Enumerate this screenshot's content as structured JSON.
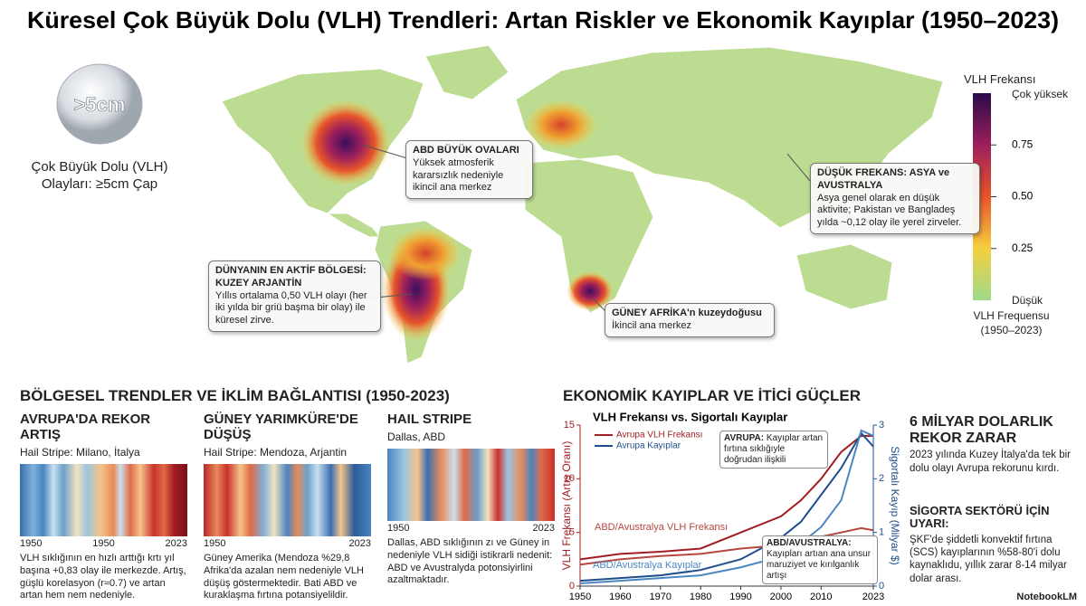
{
  "title": "Küresel Çok Büyük Dolu (VLH) Trendleri: Artan Riskler ve Ekonomik Kayıplar (1950–2023)",
  "hail_icon": {
    "label": ">5cm",
    "caption": "Çok Büyük Dolu (VLH) Olayları: ≥5cm Çap"
  },
  "map": {
    "colorbar": {
      "title": "VLH Frekansı",
      "top_label": "Çok yüksek",
      "lim": [
        0,
        1
      ],
      "ticks": [
        0.75,
        {
          "value": 0.5,
          "label": "0.50"
        },
        0.25
      ],
      "bottom_label": "Düşük",
      "caption": "VLH Frequensu (1950–2023)"
    },
    "callouts": [
      {
        "title": "ABD BÜYÜK OVALARI",
        "text": "Yüksek atmosferik kararsızlık nedeniyle ikincil ana merkez"
      },
      {
        "title": "DÜŞÜK FREKANS: ASYA ve AVUSTRALYA",
        "text": "Asya genel olarak en düşük aktivite; Pakistan ve Bangladeş yılda ~0,12 olay ile yerel zirveler."
      },
      {
        "title": "DÜNYANIN EN AKTİF BÖLGESİ: KUZEY ARJANTİN",
        "text": "Yıllıs ortalama 0,50 VLH olayı (her iki yılda bir griü başma bir olay) ile küresel zirve."
      },
      {
        "title": "GÜNEY AFRİKA'n kuzeydoğusu",
        "text": "İkincil ana merkez"
      }
    ]
  },
  "regional": {
    "title": "BÖLGESEL TRENDLER VE İKLİM BAĞLANTISI (1950-2023)",
    "panels": [
      {
        "title": "AVRUPA'DA REKOR ARTIŞ",
        "subtitle": "Hail Stripe: Milano, İtalya",
        "axis_labels": [
          "1950",
          "1950",
          "2023"
        ],
        "text": "VLH sıklığının en hızlı arttığı krtı yıl başına +0,83 olay ile merkezde. Artış, güşlü korelasyon (r≈0.7) ve artan artan hem nem nedeniyle."
      },
      {
        "title": "GÜNEY YARIMKÜRE'DE DÜŞÜŞ",
        "subtitle": "Hail Stripe: Mendoza, Arjantin",
        "axis_labels": [
          "1950",
          "2023"
        ],
        "text": "Güney Amerika (Mendoza %29,8 Afrika'da azalan nem nedeniyle VLH düşüş göstermektedir. Bati ABD ve kuraklaşma fırtına potansiyelildir."
      },
      {
        "title": "HAIL STRIPE",
        "subtitle": "Dallas, ABD",
        "axis_labels": [
          "1950",
          "2023"
        ],
        "text": "Dallas, ABD sıklığının zı ve Güney in nedeniyle VLH sidiği istikrarli nedenit: ABD ve Avustralyda potonsiyirlini azaltmaktadır."
      }
    ]
  },
  "economic": {
    "title": "EKONOMİK KAYIPLAR VE İTİCİ GÜÇLER",
    "stats": [
      {
        "title": "6 MİLYAR DOLARLIK REKOR ZARAR",
        "text": "2023 yılında Kuzey İtalya'da tek bir dolu olayı Avrupa rekorunu kırdı."
      },
      {
        "title": "SİGORTA SEKTÖRÜ İÇİN UYARI:",
        "text": "ŞKF'de şiddetli konvektif fırtına (SCS) kayıplarının %58-80'i dolu kaynaklıdu, yıllık zarar 8-14 milyar dolar arası."
      }
    ]
  },
  "chart_data": {
    "type": "line",
    "title": "VLH Frekansı vs. Sigortalı Kayıplar",
    "x": [
      1950,
      1960,
      1970,
      1980,
      1990,
      2000,
      2005,
      2010,
      2015,
      2020,
      2023
    ],
    "xlim": [
      1950,
      2023
    ],
    "xticks": [
      1950,
      1960,
      1970,
      1980,
      1990,
      2000,
      2010,
      2023
    ],
    "ylabel": "VLH Frekansı (Artış Oranı)",
    "ylim": [
      0,
      15
    ],
    "yticks": [
      0,
      5,
      10,
      15
    ],
    "y2label": "Sigortalı Kayıp (Milyar $)",
    "y2lim": [
      0,
      3
    ],
    "y2ticks": [
      0,
      1,
      2,
      3
    ],
    "series": [
      {
        "name": "Avrupa VLH Frekansı",
        "color": "#a11d21",
        "values": [
          2.5,
          3,
          3.2,
          3.5,
          5,
          6.5,
          8,
          10,
          12.5,
          14,
          14
        ]
      },
      {
        "name": "Avrupa Kayıplar",
        "color": "#1f4e8c",
        "axis": "y2",
        "values": [
          0.1,
          0.15,
          0.2,
          0.3,
          0.5,
          0.9,
          1.2,
          1.7,
          2.2,
          2.85,
          2.6
        ]
      },
      {
        "name": "ABD/Avustralya VLH Frekansı",
        "color": "#b5473f",
        "values": [
          2,
          2.5,
          2.8,
          3,
          3.5,
          3.8,
          4.2,
          4.6,
          5,
          5.4,
          5.2
        ]
      },
      {
        "name": "ABD/Avustralya Kayıplar",
        "color": "#4a86c0",
        "axis": "y2",
        "values": [
          0.05,
          0.1,
          0.15,
          0.2,
          0.35,
          0.55,
          0.8,
          1.1,
          1.6,
          2.9,
          2.8
        ]
      }
    ],
    "annotations": [
      {
        "title": "AVRUPA:",
        "text": "Kayıplar artan fırtına sıklığıyle doğrudan ilişkili"
      },
      {
        "title": "ABD/AVUSTRALYA:",
        "text": "Kayıpları artıan ana unsur maruziyet ve kırılganlık artışı"
      }
    ]
  },
  "footer": "NotebookLM"
}
